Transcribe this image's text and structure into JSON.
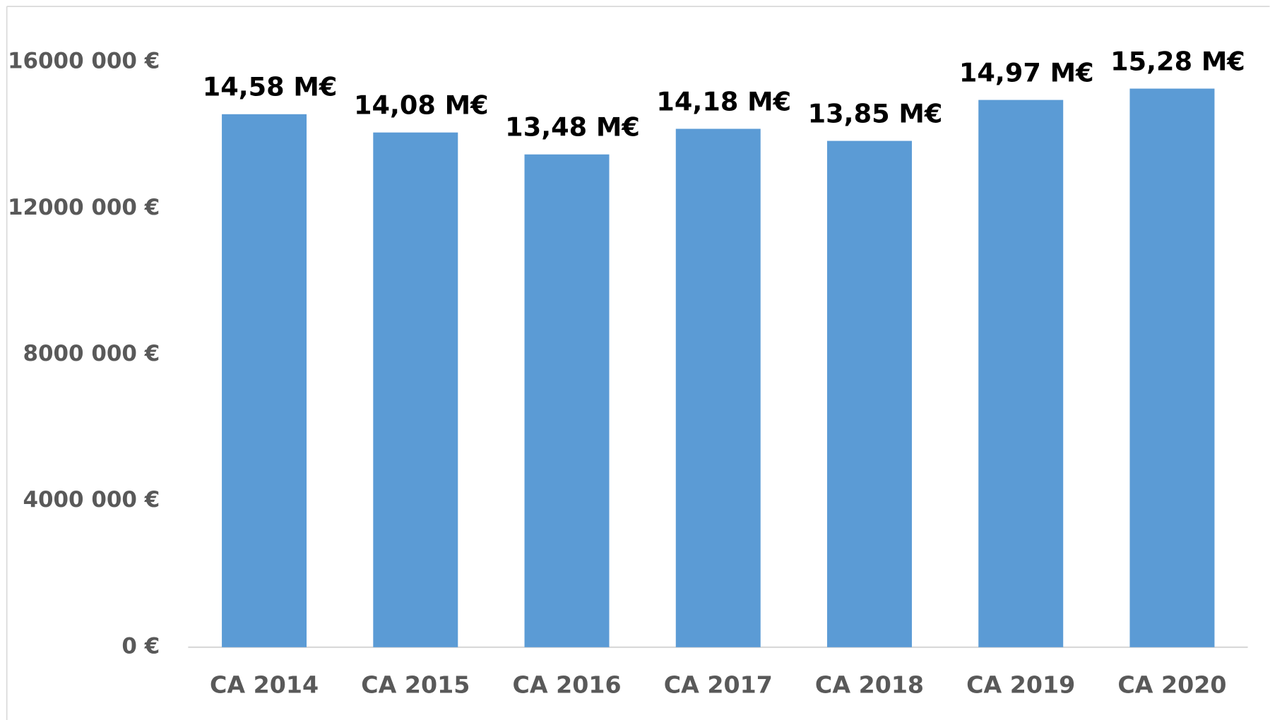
{
  "chart_data": {
    "type": "bar",
    "categories": [
      "CA 2014",
      "CA 2015",
      "CA 2016",
      "CA 2017",
      "CA 2018",
      "CA 2019",
      "CA 2020"
    ],
    "values": [
      14580000,
      14080000,
      13480000,
      14180000,
      13850000,
      14970000,
      15280000
    ],
    "value_labels": [
      "14,58 M€",
      "14,08 M€",
      "13,48 M€",
      "14,18 M€",
      "13,85 M€",
      "14,97 M€",
      "15,28 M€"
    ],
    "color": "#5b9bd5",
    "ylim": [
      0,
      16000000
    ],
    "yticks": [
      {
        "value": 0,
        "label": "0 €"
      },
      {
        "value": 4000000,
        "label": "4000 000 €"
      },
      {
        "value": 8000000,
        "label": "8000 000 €"
      },
      {
        "value": 12000000,
        "label": "12000 000 €"
      },
      {
        "value": 16000000,
        "label": "16000 000 €"
      }
    ],
    "grid": false
  }
}
